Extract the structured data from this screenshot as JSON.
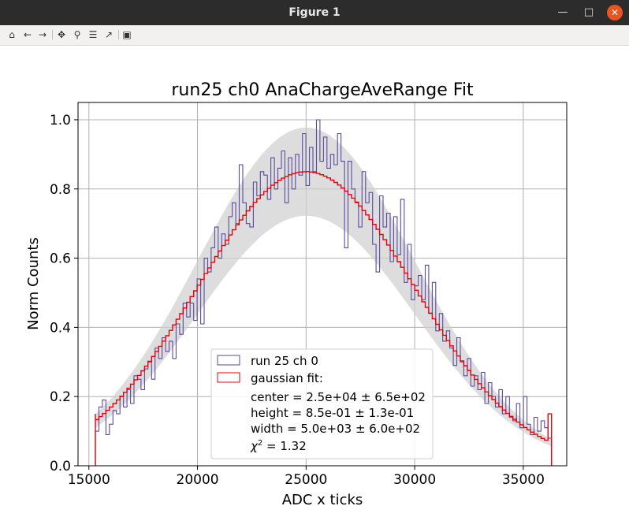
{
  "window": {
    "title": "Figure 1"
  },
  "toolbar": {
    "icons": [
      "home-icon",
      "back-icon",
      "forward-icon",
      "pan-icon",
      "zoom-icon",
      "subplots-icon",
      "edit-axis-icon",
      "save-icon"
    ]
  },
  "chart_data": {
    "type": "line",
    "title": "run25 ch0 AnaChargeAveRange Fit",
    "xlabel": "ADC x ticks",
    "ylabel": "Norm Counts",
    "xlim": [
      14500,
      37000
    ],
    "ylim": [
      0,
      1.05
    ],
    "xticks": [
      "15000",
      "20000",
      "25000",
      "30000",
      "35000"
    ],
    "yticks": [
      "0.0",
      "0.2",
      "0.4",
      "0.6",
      "0.8",
      "1.0"
    ],
    "grid": true,
    "legend_position": "lower-center",
    "bin_range": [
      15300,
      36300
    ],
    "series": [
      {
        "name": "run 25 ch 0",
        "style": "step",
        "color": "#5b4a9e",
        "values": [
          0.1,
          0.17,
          0.19,
          0.09,
          0.12,
          0.16,
          0.15,
          0.2,
          0.17,
          0.22,
          0.18,
          0.26,
          0.25,
          0.22,
          0.28,
          0.3,
          0.25,
          0.34,
          0.31,
          0.37,
          0.33,
          0.36,
          0.31,
          0.41,
          0.38,
          0.47,
          0.43,
          0.47,
          0.42,
          0.54,
          0.41,
          0.6,
          0.56,
          0.63,
          0.69,
          0.6,
          0.67,
          0.64,
          0.72,
          0.76,
          0.7,
          0.87,
          0.76,
          0.7,
          0.69,
          0.82,
          0.78,
          0.85,
          0.84,
          0.77,
          0.89,
          0.8,
          0.86,
          0.91,
          0.76,
          0.89,
          0.8,
          0.9,
          0.84,
          0.96,
          0.81,
          0.92,
          0.85,
          1.0,
          0.88,
          0.95,
          0.86,
          0.9,
          0.87,
          0.96,
          0.88,
          0.63,
          0.88,
          0.8,
          0.76,
          0.69,
          0.85,
          0.76,
          0.79,
          0.64,
          0.56,
          0.78,
          0.69,
          0.73,
          0.59,
          0.72,
          0.61,
          0.77,
          0.53,
          0.64,
          0.48,
          0.52,
          0.55,
          0.48,
          0.58,
          0.44,
          0.53,
          0.39,
          0.44,
          0.36,
          0.39,
          0.34,
          0.29,
          0.37,
          0.3,
          0.26,
          0.31,
          0.23,
          0.26,
          0.22,
          0.27,
          0.18,
          0.24,
          0.2,
          0.17,
          0.22,
          0.15,
          0.2,
          0.14,
          0.13,
          0.18,
          0.11,
          0.2,
          0.12,
          0.09,
          0.14,
          0.1,
          0.13,
          0.11,
          0.08
        ]
      },
      {
        "name": "gaussian fit:",
        "style": "step",
        "color": "#e8000b",
        "center": 25000,
        "height": 0.85,
        "width": 5000,
        "tail_value": 0.15
      },
      {
        "name": "",
        "style": "band",
        "color": "#cfcfcf",
        "relative_width": 0.15
      }
    ],
    "legend": {
      "entries": [
        "run 25 ch 0",
        "gaussian fit:"
      ],
      "text_lines": [
        "center = 2.5e+04 ± 6.5e+02",
        "height = 8.5e-01 ± 1.3e-01",
        "width = 5.0e+03 ± 6.0e+02"
      ],
      "chi_symbol": "χ",
      "chi_exp": "2",
      "chi_value": " = 1.32"
    }
  }
}
